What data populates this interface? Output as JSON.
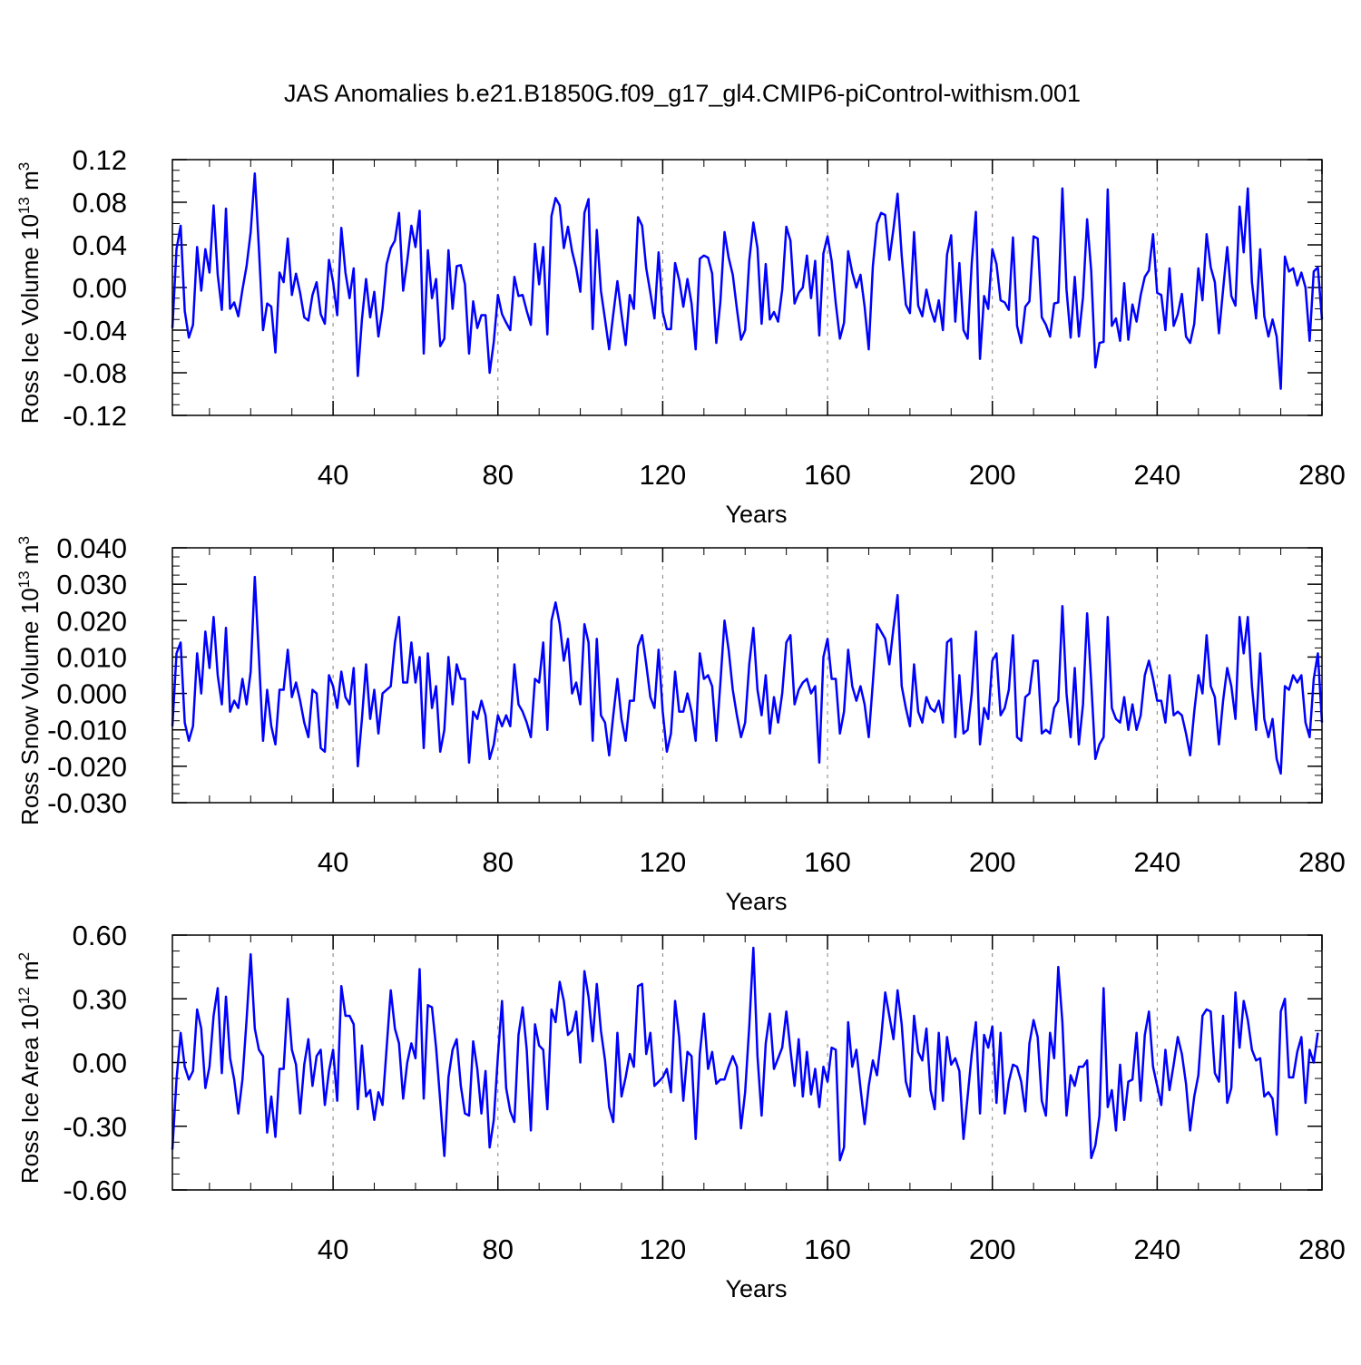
{
  "title": "JAS Anomalies b.e21.B1850G.f09_g17_gl4.CMIP6-piControl-withism.001",
  "colors": {
    "line": "#0000ff",
    "axis": "#000000",
    "grid": "#808080"
  },
  "chart_data": [
    {
      "type": "line",
      "xlabel": "Years",
      "ylabel_base": "Ross Ice Volume 10",
      "ylabel_exp": "13",
      "ylabel_unit": " m",
      "ylabel_unit_exp": "3",
      "xlim": [
        1,
        280
      ],
      "ylim": [
        -0.12,
        0.12
      ],
      "x_ticks": [
        40,
        80,
        120,
        160,
        200,
        240,
        280
      ],
      "x_tick_labels": [
        "40",
        "80",
        "120",
        "160",
        "200",
        "240",
        "280"
      ],
      "y_ticks": [
        -0.12,
        -0.08,
        -0.04,
        0,
        0.04,
        0.08,
        0.12
      ],
      "y_tick_labels": [
        "-0.12",
        "-0.08",
        "-0.04",
        "0.00",
        "0.04",
        "0.08",
        "0.12"
      ],
      "grid": "vertical dashed at x ticks",
      "x_start": 1,
      "values": [
        -0.038,
        0.036,
        0.058,
        -0.022,
        -0.047,
        -0.035,
        0.038,
        -0.003,
        0.036,
        0.014,
        0.077,
        0.012,
        -0.021,
        0.074,
        -0.02,
        -0.014,
        -0.027,
        -0.002,
        0.02,
        0.052,
        0.107,
        0.036,
        -0.04,
        -0.015,
        -0.018,
        -0.061,
        0.014,
        0.005,
        0.046,
        -0.007,
        0.013,
        -0.005,
        -0.028,
        -0.031,
        -0.007,
        0.005,
        -0.025,
        -0.034,
        0.026,
        0.005,
        -0.026,
        0.056,
        0.014,
        -0.01,
        0.018,
        -0.083,
        -0.03,
        0.008,
        -0.028,
        -0.004,
        -0.046,
        -0.02,
        0.022,
        0.037,
        0.044,
        0.07,
        -0.003,
        0.025,
        0.058,
        0.038,
        0.072,
        -0.062,
        0.035,
        -0.01,
        0.008,
        -0.055,
        -0.048,
        0.035,
        -0.02,
        0.02,
        0.021,
        0.003,
        -0.062,
        -0.013,
        -0.038,
        -0.026,
        -0.026,
        -0.08,
        -0.051,
        -0.007,
        -0.025,
        -0.033,
        -0.04,
        0.01,
        -0.008,
        -0.007,
        -0.022,
        -0.035,
        0.041,
        0.003,
        0.038,
        -0.044,
        0.067,
        0.084,
        0.077,
        0.037,
        0.057,
        0.034,
        0.018,
        -0.004,
        0.07,
        0.083,
        -0.039,
        0.054,
        -0.003,
        -0.03,
        -0.058,
        -0.025,
        0.006,
        -0.025,
        -0.054,
        -0.007,
        -0.02,
        0.066,
        0.058,
        0.018,
        -0.005,
        -0.029,
        0.033,
        -0.023,
        -0.039,
        -0.039,
        0.023,
        0.007,
        -0.018,
        0.008,
        -0.015,
        -0.058,
        0.027,
        0.03,
        0.028,
        0.013,
        -0.052,
        -0.013,
        0.052,
        0.028,
        0.012,
        -0.02,
        -0.049,
        -0.04,
        0.025,
        0.061,
        0.037,
        -0.034,
        0.022,
        -0.03,
        -0.023,
        -0.032,
        -0.002,
        0.057,
        0.044,
        -0.015,
        -0.005,
        0.0,
        0.03,
        -0.01,
        0.025,
        -0.045,
        0.032,
        0.048,
        0.025,
        -0.015,
        -0.048,
        -0.033,
        0.034,
        0.014,
        0.0,
        0.012,
        -0.018,
        -0.058,
        0.02,
        0.06,
        0.07,
        0.068,
        0.026,
        0.055,
        0.088,
        0.03,
        -0.016,
        -0.024,
        0.052,
        -0.017,
        -0.027,
        -0.002,
        -0.02,
        -0.032,
        -0.012,
        -0.04,
        0.031,
        0.049,
        -0.032,
        0.023,
        -0.04,
        -0.048,
        0.023,
        0.071,
        -0.067,
        -0.008,
        -0.02,
        0.036,
        0.022,
        -0.012,
        -0.014,
        -0.021,
        0.047,
        -0.036,
        -0.052,
        -0.018,
        -0.013,
        0.048,
        0.046,
        -0.028,
        -0.035,
        -0.046,
        -0.015,
        -0.014,
        0.093,
        -0.002,
        -0.047,
        0.01,
        -0.046,
        -0.009,
        0.064,
        0.015,
        -0.075,
        -0.052,
        -0.051,
        0.092,
        -0.036,
        -0.029,
        -0.05,
        0.004,
        -0.049,
        -0.016,
        -0.032,
        -0.007,
        0.01,
        0.016,
        0.05,
        -0.005,
        -0.007,
        -0.04,
        0.018,
        -0.036,
        -0.025,
        -0.006,
        -0.046,
        -0.052,
        -0.034,
        0.018,
        -0.012,
        0.05,
        0.019,
        0.005,
        -0.043,
        -0.002,
        0.038,
        -0.008,
        -0.017,
        0.076,
        0.033,
        0.093,
        0.005,
        -0.029,
        0.036,
        -0.027,
        -0.046,
        -0.03,
        -0.046,
        -0.095,
        0.029,
        0.015,
        0.018,
        0.002,
        0.014,
        0.0,
        -0.05,
        0.015,
        0.019,
        -0.03
      ]
    },
    {
      "type": "line",
      "xlabel": "Years",
      "ylabel_base": "Ross Snow Volume 10",
      "ylabel_exp": "13",
      "ylabel_unit": " m",
      "ylabel_unit_exp": "3",
      "xlim": [
        1,
        280
      ],
      "ylim": [
        -0.03,
        0.04
      ],
      "x_ticks": [
        40,
        80,
        120,
        160,
        200,
        240,
        280
      ],
      "x_tick_labels": [
        "40",
        "80",
        "120",
        "160",
        "200",
        "240",
        "280"
      ],
      "y_ticks": [
        -0.03,
        -0.02,
        -0.01,
        0,
        0.01,
        0.02,
        0.03,
        0.04
      ],
      "y_tick_labels": [
        "-0.030",
        "-0.020",
        "-0.010",
        "0.000",
        "0.010",
        "0.020",
        "0.030",
        "0.040"
      ],
      "grid": "vertical dashed at x ticks",
      "x_start": 1,
      "values": [
        -0.009,
        0.011,
        0.014,
        -0.008,
        -0.013,
        -0.009,
        0.011,
        0.0,
        0.017,
        0.007,
        0.021,
        0.005,
        -0.003,
        0.018,
        -0.005,
        -0.002,
        -0.004,
        0.004,
        -0.003,
        0.006,
        0.032,
        0.01,
        -0.013,
        0.001,
        -0.009,
        -0.014,
        0.001,
        0.001,
        0.012,
        -0.001,
        0.003,
        -0.002,
        -0.008,
        -0.012,
        0.001,
        0.0,
        -0.015,
        -0.016,
        0.005,
        0.002,
        -0.004,
        0.006,
        -0.001,
        -0.003,
        0.007,
        -0.02,
        -0.007,
        0.008,
        -0.007,
        0.001,
        -0.011,
        0.0,
        0.001,
        0.002,
        0.014,
        0.021,
        0.003,
        0.003,
        0.014,
        0.003,
        0.01,
        -0.015,
        0.011,
        -0.004,
        0.002,
        -0.016,
        -0.01,
        0.01,
        -0.003,
        0.008,
        0.004,
        0.004,
        -0.019,
        -0.005,
        -0.007,
        -0.002,
        -0.006,
        -0.018,
        -0.014,
        -0.006,
        -0.009,
        -0.006,
        -0.009,
        0.008,
        -0.003,
        -0.005,
        -0.008,
        -0.012,
        0.004,
        0.003,
        0.014,
        -0.01,
        0.02,
        0.025,
        0.019,
        0.009,
        0.015,
        0.0,
        0.003,
        -0.003,
        0.019,
        0.014,
        -0.013,
        0.015,
        -0.006,
        -0.008,
        -0.017,
        -0.006,
        0.004,
        -0.007,
        -0.013,
        -0.002,
        -0.002,
        0.013,
        0.016,
        0.008,
        -0.001,
        -0.004,
        0.012,
        -0.005,
        -0.016,
        -0.011,
        0.006,
        -0.005,
        -0.005,
        0.0,
        -0.005,
        -0.013,
        0.011,
        0.004,
        0.005,
        0.002,
        -0.013,
        0.003,
        0.02,
        0.012,
        0.001,
        -0.006,
        -0.012,
        -0.008,
        0.008,
        0.018,
        0.001,
        -0.006,
        0.005,
        -0.011,
        -0.001,
        -0.008,
        0.0,
        0.014,
        0.016,
        -0.003,
        0.001,
        0.003,
        0.004,
        0.0,
        0.002,
        -0.019,
        0.01,
        0.015,
        0.004,
        0.004,
        -0.011,
        -0.005,
        0.012,
        0.002,
        -0.002,
        0.002,
        -0.003,
        -0.012,
        0.003,
        0.019,
        0.017,
        0.015,
        0.008,
        0.018,
        0.027,
        0.002,
        -0.004,
        -0.009,
        0.008,
        -0.005,
        -0.008,
        -0.001,
        -0.004,
        -0.005,
        -0.002,
        -0.008,
        0.014,
        0.015,
        -0.012,
        0.005,
        -0.011,
        -0.01,
        0.0,
        0.017,
        -0.014,
        -0.004,
        -0.007,
        0.009,
        0.011,
        -0.006,
        -0.004,
        0.001,
        0.016,
        -0.012,
        -0.013,
        -0.001,
        0.0,
        0.009,
        0.009,
        -0.011,
        -0.01,
        -0.011,
        -0.004,
        -0.002,
        0.024,
        0.0,
        -0.012,
        0.007,
        -0.014,
        -0.003,
        0.022,
        0.003,
        -0.018,
        -0.014,
        -0.012,
        0.021,
        -0.004,
        -0.007,
        -0.008,
        -0.001,
        -0.01,
        -0.003,
        -0.01,
        -0.006,
        0.005,
        0.009,
        0.004,
        -0.002,
        -0.002,
        -0.008,
        0.005,
        -0.006,
        -0.005,
        -0.006,
        -0.011,
        -0.017,
        -0.005,
        0.005,
        0.0,
        0.016,
        0.002,
        -0.001,
        -0.014,
        -0.002,
        0.007,
        0.002,
        -0.007,
        0.021,
        0.011,
        0.021,
        0.002,
        -0.01,
        0.011,
        -0.007,
        -0.012,
        -0.007,
        -0.018,
        -0.022,
        0.002,
        0.001,
        0.005,
        0.003,
        0.005,
        -0.008,
        -0.012,
        0.004,
        0.011,
        -0.008
      ]
    },
    {
      "type": "line",
      "xlabel": "Years",
      "ylabel_base": "Ross Ice Area 10",
      "ylabel_exp": "12",
      "ylabel_unit": " m",
      "ylabel_unit_exp": "2",
      "xlim": [
        1,
        280
      ],
      "ylim": [
        -0.6,
        0.6
      ],
      "x_ticks": [
        40,
        80,
        120,
        160,
        200,
        240,
        280
      ],
      "x_tick_labels": [
        "40",
        "80",
        "120",
        "160",
        "200",
        "240",
        "280"
      ],
      "y_ticks": [
        -0.6,
        -0.3,
        0,
        0.3,
        0.6
      ],
      "y_tick_labels": [
        "-0.60",
        "-0.30",
        "0.00",
        "0.30",
        "0.60"
      ],
      "grid": "vertical dashed at x ticks",
      "x_start": 1,
      "values": [
        -0.41,
        -0.08,
        0.14,
        -0.02,
        -0.08,
        -0.04,
        0.25,
        0.16,
        -0.12,
        -0.02,
        0.22,
        0.35,
        -0.05,
        0.31,
        0.02,
        -0.08,
        -0.24,
        -0.08,
        0.2,
        0.51,
        0.16,
        0.06,
        0.03,
        -0.33,
        -0.16,
        -0.35,
        -0.03,
        -0.03,
        0.3,
        0.06,
        -0.01,
        -0.24,
        -0.01,
        0.11,
        -0.11,
        0.03,
        0.06,
        -0.2,
        -0.04,
        0.06,
        -0.18,
        0.36,
        0.22,
        0.22,
        0.18,
        -0.22,
        0.08,
        -0.16,
        -0.13,
        -0.27,
        -0.14,
        -0.2,
        0.07,
        0.34,
        0.16,
        0.09,
        -0.17,
        0.0,
        0.09,
        0.02,
        0.44,
        -0.17,
        0.27,
        0.26,
        0.07,
        -0.18,
        -0.44,
        -0.07,
        0.06,
        0.11,
        -0.11,
        -0.24,
        -0.25,
        0.1,
        -0.03,
        -0.24,
        -0.04,
        -0.4,
        -0.27,
        0.03,
        0.29,
        -0.12,
        -0.23,
        -0.28,
        0.13,
        0.26,
        0.06,
        -0.32,
        0.18,
        0.08,
        0.06,
        -0.22,
        0.25,
        0.19,
        0.38,
        0.29,
        0.13,
        0.15,
        0.24,
        -0.0,
        0.43,
        0.31,
        0.1,
        0.37,
        0.15,
        0.01,
        -0.21,
        -0.28,
        0.14,
        -0.16,
        -0.07,
        0.04,
        -0.02,
        0.36,
        0.37,
        0.04,
        0.14,
        -0.11,
        -0.09,
        -0.07,
        -0.03,
        -0.14,
        0.29,
        0.12,
        -0.18,
        0.05,
        0.03,
        -0.36,
        0.04,
        0.23,
        -0.03,
        0.05,
        -0.1,
        -0.08,
        -0.08,
        -0.02,
        0.03,
        -0.02,
        -0.31,
        -0.14,
        0.17,
        0.54,
        0.03,
        -0.25,
        0.09,
        0.23,
        -0.03,
        0.02,
        0.07,
        0.24,
        0.06,
        -0.11,
        0.11,
        -0.16,
        0.05,
        -0.15,
        -0.03,
        -0.21,
        -0.02,
        -0.09,
        0.07,
        0.06,
        -0.46,
        -0.4,
        0.19,
        -0.02,
        0.06,
        -0.12,
        -0.29,
        -0.11,
        0.01,
        -0.06,
        0.11,
        0.33,
        0.22,
        0.11,
        0.34,
        0.18,
        -0.09,
        -0.16,
        0.22,
        0.05,
        0.01,
        0.16,
        -0.13,
        -0.22,
        0.14,
        -0.18,
        0.12,
        -0.01,
        0.02,
        -0.04,
        -0.36,
        -0.16,
        0.04,
        0.19,
        -0.24,
        0.13,
        0.07,
        0.17,
        -0.19,
        0.14,
        -0.24,
        -0.09,
        -0.01,
        -0.02,
        -0.09,
        -0.23,
        0.09,
        0.2,
        0.12,
        -0.18,
        -0.25,
        0.14,
        0.02,
        0.45,
        0.19,
        -0.25,
        -0.06,
        -0.11,
        -0.02,
        -0.02,
        0.01,
        -0.45,
        -0.39,
        -0.25,
        0.35,
        -0.21,
        -0.13,
        -0.32,
        -0.01,
        -0.27,
        -0.09,
        -0.08,
        0.14,
        -0.18,
        0.13,
        0.24,
        -0.02,
        -0.11,
        -0.2,
        0.06,
        -0.13,
        -0.01,
        0.12,
        0.04,
        -0.1,
        -0.32,
        -0.16,
        -0.06,
        0.22,
        0.25,
        0.24,
        -0.05,
        -0.09,
        0.22,
        -0.19,
        -0.12,
        0.33,
        0.07,
        0.29,
        0.2,
        0.06,
        0.01,
        0.02,
        -0.16,
        -0.14,
        -0.17,
        -0.34,
        0.24,
        0.3,
        -0.07,
        -0.07,
        0.05,
        0.12,
        -0.19,
        0.06,
        0.0,
        0.14
      ]
    }
  ]
}
